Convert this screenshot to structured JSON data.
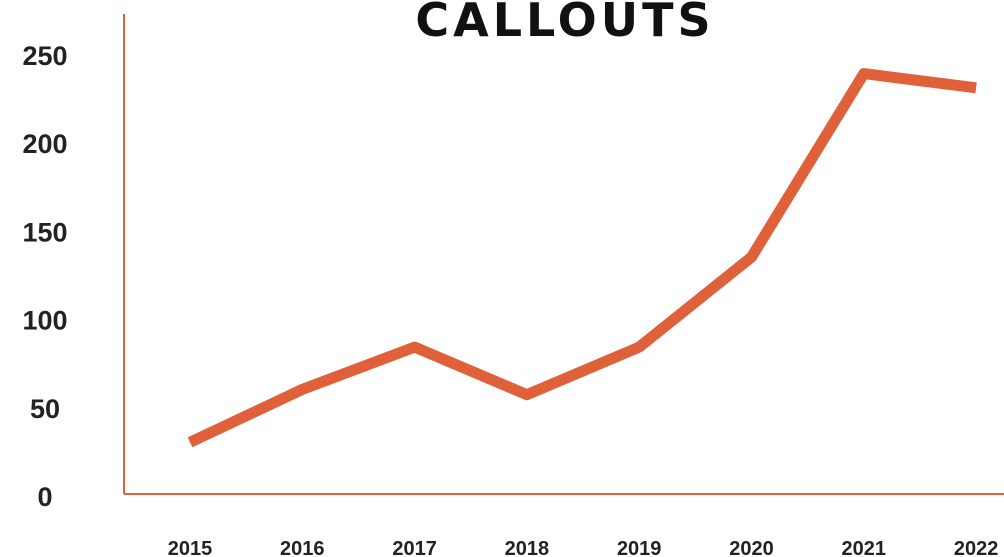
{
  "chart_data": {
    "type": "line",
    "title": "CALLOUTS",
    "xlabel": "",
    "ylabel": "",
    "x": [
      "2015",
      "2016",
      "2017",
      "2018",
      "2019",
      "2020",
      "2021",
      "2022"
    ],
    "ylim": [
      0,
      250
    ],
    "yticks": [
      0,
      50,
      100,
      150,
      200,
      250
    ],
    "grid": false,
    "legend": "none",
    "series": [
      {
        "values": [
          31,
          61,
          85,
          58,
          85,
          136,
          240,
          232
        ],
        "color": "#E0603A"
      }
    ],
    "axis_color": "#E0603A"
  }
}
